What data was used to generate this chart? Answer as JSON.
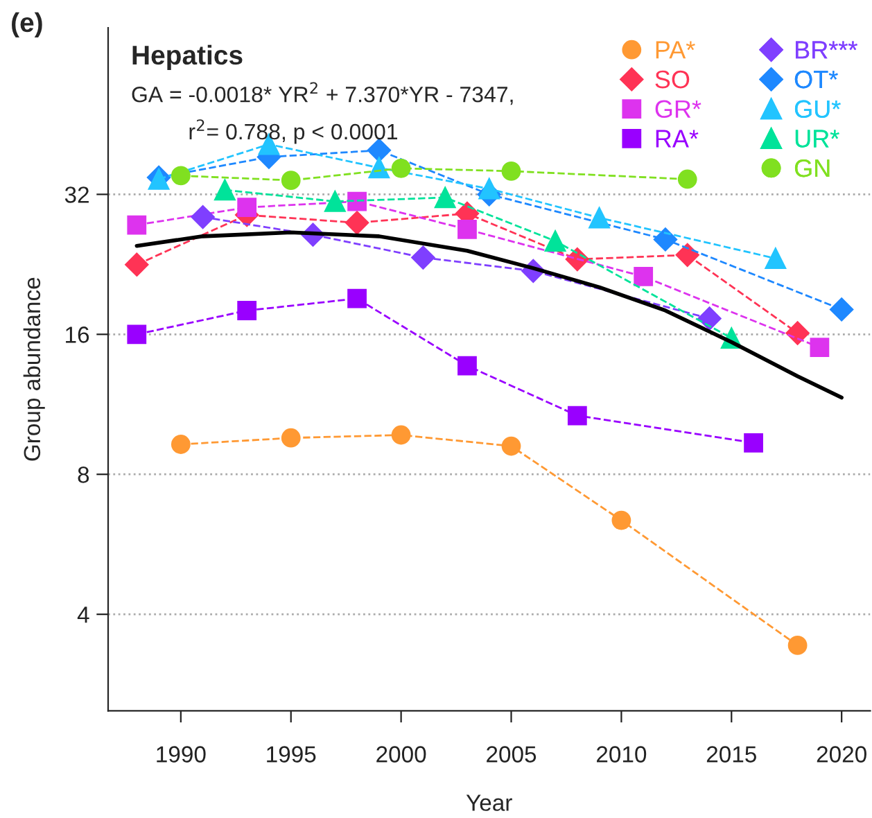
{
  "chart_data": {
    "type": "line",
    "title": "Hepatics",
    "xlabel": "Year",
    "ylabel": "Group abundance",
    "annotations": [
      "(e)",
      "GA = -0.0018* YR$^{2}$ + 7.370*YR - 7347,",
      "r$^{2}$= 0.788, p < 0.0001"
    ],
    "log": "y",
    "xlim": [
      1986.7,
      2021.3
    ],
    "xticks": [
      1990,
      1995,
      2000,
      2005,
      2010,
      2015,
      2020
    ],
    "ylim": [
      2.48,
      73
    ],
    "yticks": [
      4,
      8,
      16,
      32
    ],
    "grid": "y",
    "legend": "top right",
    "line_style": "dashed",
    "series": [
      {
        "name": "PA*",
        "color": "#ff9933",
        "marker": "circle",
        "x": [
          1990,
          1995,
          2000,
          2005,
          2010,
          2018
        ],
        "values": [
          9.28,
          9.58,
          9.72,
          9.2,
          6.37,
          3.43
        ]
      },
      {
        "name": "SO",
        "color": "#ff3355",
        "marker": "diamond",
        "x": [
          1988,
          1993,
          1998,
          2003,
          2008,
          2013,
          2018
        ],
        "values": [
          22.6,
          28.9,
          27.8,
          29.1,
          23.2,
          23.7,
          16.1
        ]
      },
      {
        "name": "GR*",
        "color": "#dd33ee",
        "marker": "square",
        "x": [
          1988,
          1993,
          1998,
          2003,
          2011,
          2019
        ],
        "values": [
          27.5,
          30.0,
          30.9,
          26.9,
          21.3,
          15.0
        ]
      },
      {
        "name": "RA*",
        "color": "#9900ff",
        "marker": "square",
        "x": [
          1988,
          1993,
          1998,
          2003,
          2008,
          2016
        ],
        "values": [
          16.0,
          18.0,
          19.1,
          13.7,
          10.7,
          9.35
        ]
      },
      {
        "name": "BR***",
        "color": "#7f3fff",
        "marker": "diamond",
        "x": [
          1991,
          1996,
          2001,
          2006,
          2014
        ],
        "values": [
          28.6,
          26.2,
          23.4,
          21.9,
          17.3
        ]
      },
      {
        "name": "OT*",
        "color": "#1e88ff",
        "marker": "diamond",
        "x": [
          1989,
          1994,
          1999,
          2004,
          2012,
          2020
        ],
        "values": [
          34.8,
          38.5,
          39.8,
          32.0,
          25.6,
          18.1
        ]
      },
      {
        "name": "GU*",
        "color": "#22c4ff",
        "marker": "triangle",
        "x": [
          1989,
          1994,
          1999,
          2004,
          2009,
          2017
        ],
        "values": [
          34.5,
          41.0,
          36.5,
          32.9,
          28.5,
          23.3
        ]
      },
      {
        "name": "UR*",
        "color": "#00e39a",
        "marker": "triangle",
        "x": [
          1992,
          1997,
          2002,
          2007,
          2015
        ],
        "values": [
          32.7,
          30.9,
          31.5,
          25.4,
          15.7
        ]
      },
      {
        "name": "GN",
        "color": "#80e020",
        "marker": "circle",
        "x": [
          1990,
          1995,
          2000,
          2005,
          2013
        ],
        "values": [
          35.1,
          34.3,
          36.4,
          35.9,
          34.5
        ]
      },
      {
        "color": "#000000",
        "marker": "none",
        "line_style": "solid",
        "x": [
          1988,
          1991,
          1995,
          1999,
          2003,
          2006,
          2009,
          2012,
          2015,
          2018,
          2020
        ],
        "values": [
          24.8,
          26.0,
          26.5,
          26.0,
          24.2,
          22.2,
          20.2,
          18.0,
          15.4,
          13.0,
          11.7
        ]
      }
    ]
  }
}
